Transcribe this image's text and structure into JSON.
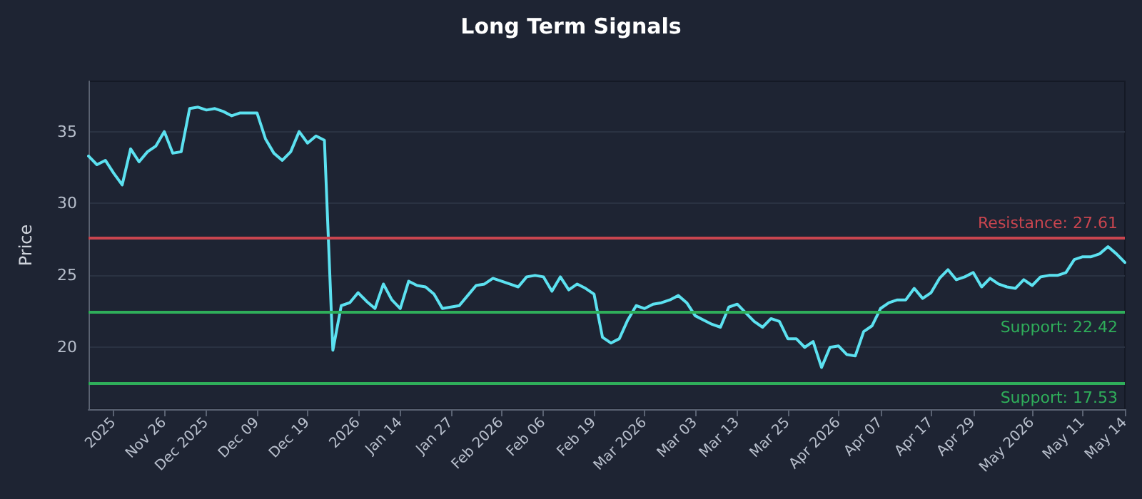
{
  "chart_data": {
    "type": "line",
    "title": "Long Term Signals",
    "ylabel": "Price",
    "categories": [
      null,
      null,
      null,
      "2025",
      null,
      null,
      null,
      null,
      null,
      "Nov 26",
      null,
      null,
      null,
      null,
      "Dec 2025",
      null,
      null,
      null,
      null,
      null,
      "Dec 09",
      null,
      null,
      null,
      null,
      null,
      "Dec 19",
      null,
      null,
      null,
      null,
      null,
      "2026",
      null,
      null,
      null,
      null,
      "Jan 14",
      null,
      null,
      null,
      null,
      null,
      "Jan 27",
      null,
      null,
      null,
      null,
      null,
      "Feb 2026",
      null,
      null,
      null,
      null,
      "Feb 06",
      null,
      null,
      null,
      null,
      null,
      "Feb 19",
      null,
      null,
      null,
      null,
      null,
      "Mar 2026",
      null,
      null,
      null,
      null,
      null,
      "Mar 03",
      null,
      null,
      null,
      null,
      "Mar 13",
      null,
      null,
      null,
      null,
      null,
      "Mar 25",
      null,
      null,
      null,
      null,
      null,
      "Apr 2026",
      null,
      null,
      null,
      null,
      "Apr 07",
      null,
      null,
      null,
      null,
      null,
      "Apr 17",
      null,
      null,
      null,
      null,
      "Apr 29",
      null,
      null,
      null,
      null,
      null,
      null,
      "May 2026",
      null,
      null,
      null,
      null,
      null,
      "May 11",
      null,
      null,
      null,
      null,
      "May 14"
    ],
    "series": [
      {
        "color": "#5ce1f0",
        "values": [
          33.3,
          32.7,
          33.0,
          32.1,
          31.3,
          33.8,
          32.9,
          33.6,
          34.0,
          35.0,
          33.5,
          33.6,
          36.6,
          36.7,
          36.5,
          36.6,
          36.4,
          36.1,
          36.3,
          36.3,
          36.3,
          34.5,
          33.5,
          33.0,
          33.6,
          35.0,
          34.2,
          34.7,
          34.4,
          19.8,
          22.9,
          23.1,
          23.8,
          23.2,
          22.7,
          24.4,
          23.3,
          22.7,
          24.6,
          24.3,
          24.2,
          23.7,
          22.7,
          22.8,
          22.9,
          23.6,
          24.3,
          24.4,
          24.8,
          24.6,
          24.4,
          24.2,
          24.9,
          25.0,
          24.9,
          23.9,
          24.9,
          24.0,
          24.4,
          24.1,
          23.7,
          20.7,
          20.3,
          20.6,
          21.9,
          22.9,
          22.7,
          23.0,
          23.1,
          23.3,
          23.6,
          23.1,
          22.2,
          21.9,
          21.6,
          21.4,
          22.8,
          23.0,
          22.4,
          21.8,
          21.4,
          22.0,
          21.8,
          20.6,
          20.6,
          20.0,
          20.4,
          18.6,
          20.0,
          20.1,
          19.5,
          19.4,
          21.1,
          21.5,
          22.7,
          23.1,
          23.3,
          23.3,
          24.1,
          23.4,
          23.8,
          24.8,
          25.4,
          24.7,
          24.9,
          25.2,
          24.2,
          24.8,
          24.4,
          24.2,
          24.1,
          24.7,
          24.3,
          24.9,
          25.0,
          25.0,
          25.2,
          26.1,
          26.3,
          26.3,
          26.5,
          27.0,
          26.5,
          25.9
        ]
      }
    ],
    "ylim": [
      15.7,
      38.5
    ],
    "yticks": [
      20,
      25,
      30,
      35
    ],
    "grid": "y",
    "marker": "none",
    "line_style": "solid",
    "ref_lines": [
      {
        "axis": "y",
        "value": 27.61,
        "label": "Resistance: 27.61",
        "color": "#c9454f"
      },
      {
        "axis": "y",
        "value": 22.42,
        "label": "Support: 22.42",
        "color": "#2fae5a"
      },
      {
        "axis": "y",
        "value": 17.53,
        "label": "Support: 17.53",
        "color": "#2fae5a"
      }
    ]
  }
}
